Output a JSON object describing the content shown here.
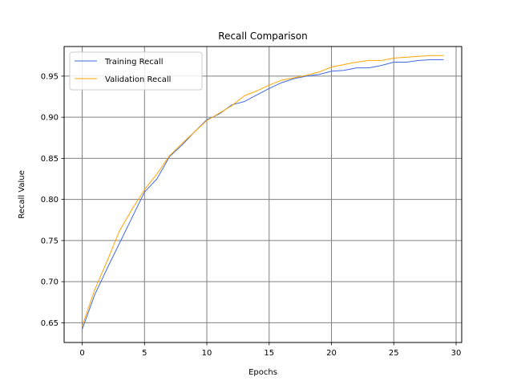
{
  "chart_data": {
    "type": "line",
    "title": "Recall Comparison",
    "xlabel": "Epochs",
    "ylabel": "Recall Value",
    "xlim": [
      -1.45,
      30.45
    ],
    "ylim": [
      0.626,
      0.986
    ],
    "xticks": [
      0,
      5,
      10,
      15,
      20,
      25,
      30
    ],
    "xtick_labels": [
      "0",
      "5",
      "10",
      "15",
      "20",
      "25",
      "30"
    ],
    "yticks": [
      0.65,
      0.7,
      0.75,
      0.8,
      0.85,
      0.9,
      0.95
    ],
    "ytick_labels": [
      "0.65",
      "0.70",
      "0.75",
      "0.80",
      "0.85",
      "0.90",
      "0.95"
    ],
    "grid": true,
    "legend_position": "top-left",
    "x": [
      0,
      1,
      2,
      3,
      4,
      5,
      6,
      7,
      8,
      9,
      10,
      11,
      12,
      13,
      14,
      15,
      16,
      17,
      18,
      19,
      20,
      21,
      22,
      23,
      24,
      25,
      26,
      27,
      28,
      29
    ],
    "series": [
      {
        "name": "Training Recall",
        "color": "#4169e1",
        "values": [
          0.642,
          0.684,
          0.716,
          0.747,
          0.778,
          0.809,
          0.825,
          0.852,
          0.866,
          0.882,
          0.897,
          0.904,
          0.915,
          0.919,
          0.927,
          0.935,
          0.942,
          0.947,
          0.95,
          0.952,
          0.956,
          0.957,
          0.96,
          0.96,
          0.963,
          0.967,
          0.967,
          0.969,
          0.97,
          0.97
        ]
      },
      {
        "name": "Validation Recall",
        "color": "#ffa500",
        "values": [
          0.646,
          0.69,
          0.725,
          0.762,
          0.788,
          0.812,
          0.831,
          0.853,
          0.868,
          0.882,
          0.896,
          0.905,
          0.914,
          0.926,
          0.932,
          0.939,
          0.945,
          0.948,
          0.951,
          0.955,
          0.961,
          0.964,
          0.967,
          0.969,
          0.969,
          0.972,
          0.973,
          0.974,
          0.975,
          0.975
        ]
      }
    ]
  }
}
